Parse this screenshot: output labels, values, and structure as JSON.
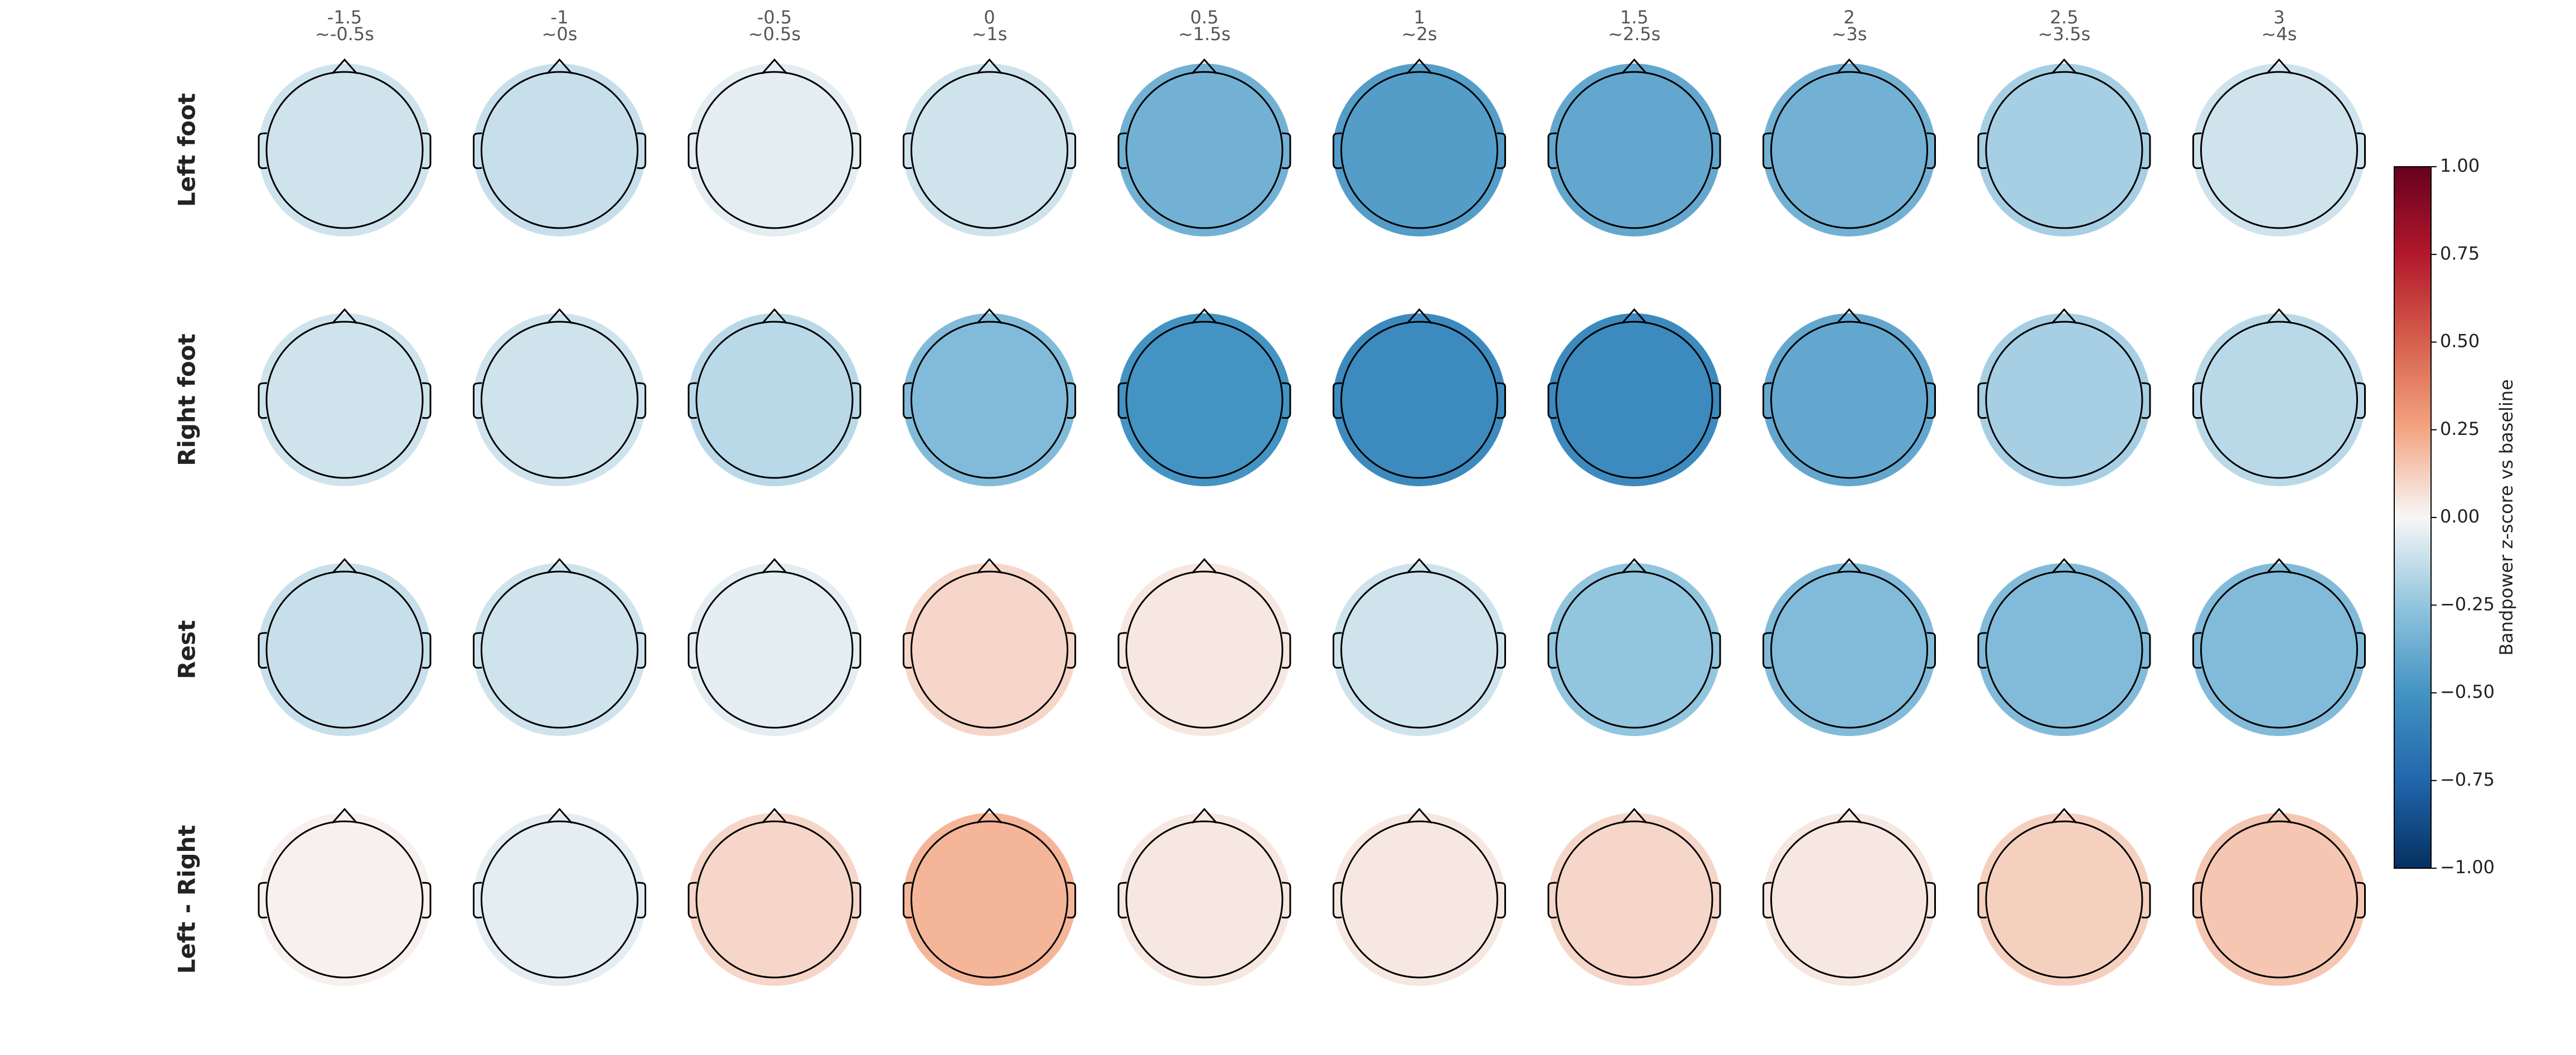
{
  "chart_data": {
    "type": "topomap",
    "categories": [
      "-1.5",
      "-1",
      "-0.5",
      "0",
      "0.5",
      "1",
      "1.5",
      "2",
      "2.5",
      "3"
    ],
    "windows": [
      "~-0.5s",
      "~0s",
      "~0.5s",
      "~1s",
      "~1.5s",
      "~2s",
      "~2.5s",
      "~3s",
      "~3.5s",
      "~4s"
    ],
    "series": [
      {
        "name": "Left foot",
        "values": [
          -0.1,
          -0.12,
          -0.05,
          -0.1,
          -0.35,
          -0.45,
          -0.4,
          -0.35,
          -0.2,
          -0.1
        ]
      },
      {
        "name": "Right foot",
        "values": [
          -0.1,
          -0.1,
          -0.15,
          -0.3,
          -0.5,
          -0.55,
          -0.55,
          -0.4,
          -0.2,
          -0.15
        ]
      },
      {
        "name": "Rest",
        "values": [
          -0.12,
          -0.1,
          -0.05,
          0.1,
          0.05,
          -0.1,
          -0.25,
          -0.3,
          -0.3,
          -0.3
        ]
      },
      {
        "name": "Left - Right",
        "values": [
          0.02,
          -0.05,
          0.1,
          0.2,
          0.05,
          0.05,
          0.1,
          0.05,
          0.12,
          0.15
        ]
      }
    ],
    "colorbar_label": "Bandpower z-score vs baseline",
    "clim": [
      -1,
      1
    ],
    "cticks": [
      {
        "value": 1,
        "label": "1.00"
      },
      {
        "value": 0.75,
        "label": "0.75"
      },
      {
        "value": 0.5,
        "label": "0.50"
      },
      {
        "value": 0.25,
        "label": "0.25"
      },
      {
        "value": 0,
        "label": "0.00"
      },
      {
        "value": -0.25,
        "label": "−0.25"
      },
      {
        "value": -0.5,
        "label": "−0.50"
      },
      {
        "value": -0.75,
        "label": "−0.75"
      },
      {
        "value": -1,
        "label": "−1.00"
      }
    ],
    "colormap": [
      "#053061",
      "#2166ac",
      "#4393c3",
      "#92c5de",
      "#f7f7f7",
      "#f4a582",
      "#d6604d",
      "#b2182b",
      "#67001f"
    ]
  }
}
